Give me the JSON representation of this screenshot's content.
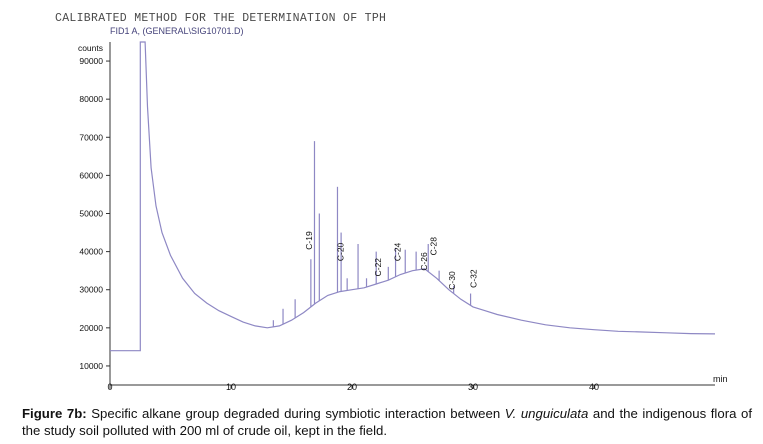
{
  "header": {
    "method_title": "CALIBRATED METHOD FOR THE DETERMINATION OF TPH",
    "signal_label": "FID1 A, (GENERAL\\SIG10701.D)"
  },
  "chart_data": {
    "type": "line",
    "title": "CALIBRATED METHOD FOR THE DETERMINATION OF TPH",
    "subtitle": "FID1 A, (GENERAL\\SIG10701.D)",
    "ylabel": "counts",
    "xlabel": "min",
    "xlim": [
      0,
      50
    ],
    "ylim": [
      5000,
      95000
    ],
    "x_ticks": [
      0,
      10,
      20,
      30,
      40
    ],
    "y_ticks": [
      10000,
      20000,
      30000,
      40000,
      50000,
      60000,
      70000,
      80000,
      90000
    ],
    "grid": false,
    "baseline_trace": [
      [
        0,
        14000
      ],
      [
        2.5,
        14000
      ],
      [
        2.5,
        95000
      ],
      [
        2.9,
        95000
      ],
      [
        3.1,
        78000
      ],
      [
        3.4,
        62000
      ],
      [
        3.8,
        52000
      ],
      [
        4.3,
        45000
      ],
      [
        5,
        39000
      ],
      [
        6,
        33000
      ],
      [
        7,
        29000
      ],
      [
        8,
        26500
      ],
      [
        9,
        24500
      ],
      [
        10,
        23000
      ],
      [
        11,
        21500
      ],
      [
        12,
        20500
      ],
      [
        13,
        20000
      ],
      [
        14,
        20500
      ],
      [
        15,
        22000
      ],
      [
        16,
        24000
      ],
      [
        17,
        26500
      ],
      [
        18,
        28500
      ],
      [
        19,
        29500
      ],
      [
        20,
        30000
      ],
      [
        21,
        30500
      ],
      [
        22,
        31500
      ],
      [
        23,
        32500
      ],
      [
        24,
        34000
      ],
      [
        25,
        35000
      ],
      [
        26,
        35500
      ],
      [
        27,
        33000
      ],
      [
        28,
        30000
      ],
      [
        29,
        27500
      ],
      [
        30,
        25500
      ],
      [
        31,
        24500
      ],
      [
        32,
        23500
      ],
      [
        34,
        22000
      ],
      [
        36,
        20800
      ],
      [
        38,
        20000
      ],
      [
        40,
        19500
      ],
      [
        42,
        19100
      ],
      [
        44,
        18900
      ],
      [
        46,
        18700
      ],
      [
        48,
        18500
      ],
      [
        50,
        18400
      ]
    ],
    "peaks": [
      {
        "x": 13.5,
        "y": 22000
      },
      {
        "x": 14.3,
        "y": 25000
      },
      {
        "x": 15.3,
        "y": 27500
      },
      {
        "x": 16.6,
        "y": 38000
      },
      {
        "x": 16.9,
        "y": 69000
      },
      {
        "x": 17.3,
        "y": 50000
      },
      {
        "x": 18.8,
        "y": 57000
      },
      {
        "x": 19.1,
        "y": 45000
      },
      {
        "x": 19.6,
        "y": 33000
      },
      {
        "x": 20.5,
        "y": 42000
      },
      {
        "x": 21.2,
        "y": 33000
      },
      {
        "x": 22.0,
        "y": 40000
      },
      {
        "x": 23.0,
        "y": 36000
      },
      {
        "x": 23.6,
        "y": 41000
      },
      {
        "x": 24.4,
        "y": 40500
      },
      {
        "x": 25.3,
        "y": 40000
      },
      {
        "x": 26.3,
        "y": 42000
      },
      {
        "x": 27.2,
        "y": 35000
      },
      {
        "x": 28.4,
        "y": 31000
      },
      {
        "x": 29.8,
        "y": 29000
      }
    ],
    "peak_labels": [
      {
        "label": "C-19",
        "x": 16.7,
        "y": 40500
      },
      {
        "label": "C-20",
        "x": 19.3,
        "y": 37500
      },
      {
        "label": "C-22",
        "x": 22.4,
        "y": 33500
      },
      {
        "label": "C-24",
        "x": 24.0,
        "y": 37500
      },
      {
        "label": "C-26",
        "x": 26.2,
        "y": 35000
      },
      {
        "label": "C-28",
        "x": 27.0,
        "y": 39000
      },
      {
        "label": "C-30",
        "x": 28.5,
        "y": 30000
      },
      {
        "label": "C-32",
        "x": 30.3,
        "y": 30500
      }
    ]
  },
  "caption": {
    "label": "Figure 7b:",
    "text_part1": " Specific alkane group degraded during symbiotic interaction between ",
    "species": "V. unguiculata",
    "text_part2": " and the indigenous flora of the study soil polluted with 200 ml of crude oil, kept in the field."
  },
  "colors": {
    "trace": "#8e88c4",
    "axis": "#333333",
    "text": "#111111",
    "header_text": "#4a4a4a",
    "subheader_text": "#44427a"
  }
}
